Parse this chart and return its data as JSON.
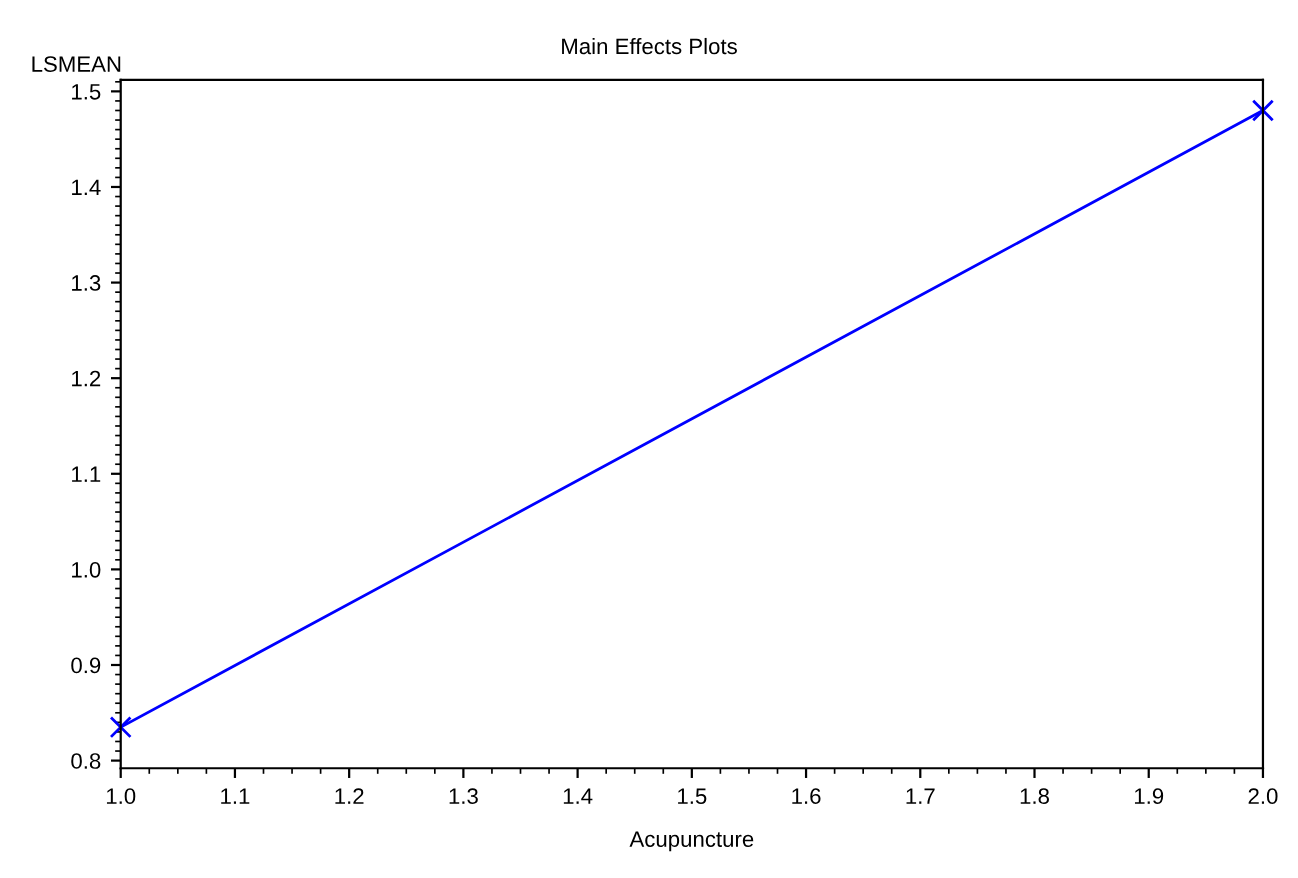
{
  "chart_data": {
    "type": "line",
    "subtitle": "Main Effects Plots",
    "xlabel": "Acupuncture",
    "ylabel": "LSMEAN",
    "x": [
      1.0,
      2.0
    ],
    "series": [
      {
        "color": "#0000ff",
        "values": [
          0.835,
          1.48
        ]
      }
    ],
    "marker": "cross",
    "line_style": "solid",
    "xlim": [
      1.0,
      2.0
    ],
    "xticks": [
      {
        "value": 1.0,
        "label": "1.0"
      },
      1.1,
      1.2,
      1.3,
      1.4,
      1.5,
      1.6,
      1.7,
      1.8,
      1.9,
      {
        "value": 2.0,
        "label": "2.0"
      }
    ],
    "ylim": [
      0.792,
      1.512
    ],
    "yticks": [
      0.8,
      0.9,
      {
        "value": 1.0,
        "label": "1.0"
      },
      1.1,
      1.2,
      1.3,
      1.4,
      1.5
    ],
    "grid": false,
    "legend": false
  }
}
